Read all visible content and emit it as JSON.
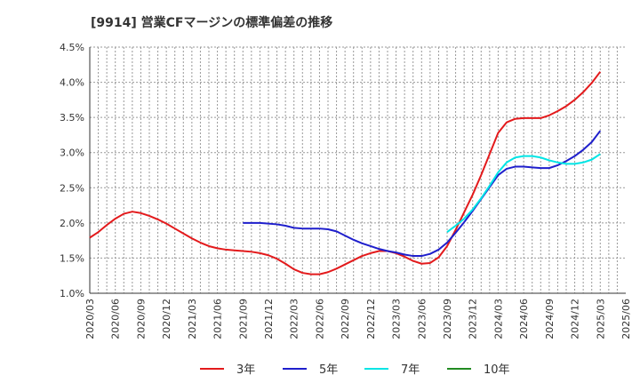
{
  "chart_data": {
    "type": "line",
    "title": "[9914]  営業CFマージンの標準偏差の推移",
    "xlabel": "",
    "ylabel": "",
    "ylim": [
      0.01,
      0.045
    ],
    "y_ticks": [
      0.01,
      0.015,
      0.02,
      0.025,
      0.03,
      0.035,
      0.04,
      0.045
    ],
    "y_tick_labels": [
      "1.0%",
      "1.5%",
      "2.0%",
      "2.5%",
      "3.0%",
      "3.5%",
      "4.0%",
      "4.5%"
    ],
    "x_tick_labels": [
      "2020/03",
      "2020/06",
      "2020/09",
      "2020/12",
      "2021/03",
      "2021/06",
      "2021/09",
      "2021/12",
      "2022/03",
      "2022/06",
      "2022/09",
      "2022/12",
      "2023/03",
      "2023/06",
      "2023/09",
      "2023/12",
      "2024/03",
      "2024/06",
      "2024/09",
      "2024/12",
      "2025/03",
      "2025/06"
    ],
    "grid": true,
    "legend_position": "bottom",
    "series": [
      {
        "name": "3年",
        "color": "#e31a1c",
        "x": [
          "2020/03",
          "2020/04",
          "2020/05",
          "2020/06",
          "2020/07",
          "2020/08",
          "2020/09",
          "2020/10",
          "2020/11",
          "2020/12",
          "2021/01",
          "2021/02",
          "2021/03",
          "2021/04",
          "2021/05",
          "2021/06",
          "2021/07",
          "2021/08",
          "2021/09",
          "2021/10",
          "2021/11",
          "2021/12",
          "2022/01",
          "2022/02",
          "2022/03",
          "2022/04",
          "2022/05",
          "2022/06",
          "2022/07",
          "2022/08",
          "2022/09",
          "2022/10",
          "2022/11",
          "2022/12",
          "2023/01",
          "2023/02",
          "2023/03",
          "2023/04",
          "2023/05",
          "2023/06",
          "2023/07",
          "2023/08",
          "2023/09",
          "2023/10",
          "2023/11",
          "2023/12",
          "2024/01",
          "2024/02",
          "2024/03",
          "2024/04",
          "2024/05",
          "2024/06",
          "2024/07",
          "2024/08",
          "2024/09",
          "2024/10",
          "2024/11",
          "2024/12",
          "2025/01",
          "2025/02",
          "2025/03"
        ],
        "values": [
          0.0179,
          0.0187,
          0.0197,
          0.0206,
          0.0213,
          0.0216,
          0.0214,
          0.021,
          0.0205,
          0.0199,
          0.0192,
          0.0185,
          0.0178,
          0.0172,
          0.0167,
          0.0164,
          0.0162,
          0.0161,
          0.016,
          0.0159,
          0.0157,
          0.0154,
          0.0149,
          0.0142,
          0.0134,
          0.0129,
          0.0127,
          0.0127,
          0.013,
          0.0135,
          0.0141,
          0.0147,
          0.0153,
          0.0157,
          0.016,
          0.016,
          0.0157,
          0.0152,
          0.0146,
          0.0142,
          0.0143,
          0.0151,
          0.0167,
          0.019,
          0.0215,
          0.024,
          0.0268,
          0.0298,
          0.0328,
          0.0343,
          0.0348,
          0.0349,
          0.0349,
          0.0349,
          0.0353,
          0.0359,
          0.0366,
          0.0375,
          0.0386,
          0.0399,
          0.0415
        ]
      },
      {
        "name": "5年",
        "color": "#1f1fcc",
        "x": [
          "2021/09",
          "2021/10",
          "2021/11",
          "2021/12",
          "2022/01",
          "2022/02",
          "2022/03",
          "2022/04",
          "2022/05",
          "2022/06",
          "2022/07",
          "2022/08",
          "2022/09",
          "2022/10",
          "2022/11",
          "2022/12",
          "2023/01",
          "2023/02",
          "2023/03",
          "2023/04",
          "2023/05",
          "2023/06",
          "2023/07",
          "2023/08",
          "2023/09",
          "2023/10",
          "2023/11",
          "2023/12",
          "2024/01",
          "2024/02",
          "2024/03",
          "2024/04",
          "2024/05",
          "2024/06",
          "2024/07",
          "2024/08",
          "2024/09",
          "2024/10",
          "2024/11",
          "2024/12",
          "2025/01",
          "2025/02",
          "2025/03"
        ],
        "values": [
          0.02,
          0.02,
          0.02,
          0.0199,
          0.0198,
          0.0196,
          0.0193,
          0.0192,
          0.0192,
          0.0192,
          0.0191,
          0.0188,
          0.0182,
          0.0176,
          0.0171,
          0.0167,
          0.0163,
          0.016,
          0.0158,
          0.0155,
          0.0153,
          0.0153,
          0.0156,
          0.0162,
          0.0172,
          0.0186,
          0.0201,
          0.0217,
          0.0234,
          0.0251,
          0.0268,
          0.0277,
          0.028,
          0.028,
          0.0279,
          0.0278,
          0.0278,
          0.0282,
          0.0288,
          0.0295,
          0.0304,
          0.0315,
          0.0331
        ]
      },
      {
        "name": "7年",
        "color": "#00e5e5",
        "x": [
          "2023/09",
          "2023/10",
          "2023/11",
          "2023/12",
          "2024/01",
          "2024/02",
          "2024/03",
          "2024/04",
          "2024/05",
          "2024/06",
          "2024/07",
          "2024/08",
          "2024/09",
          "2024/10",
          "2024/11",
          "2024/12",
          "2025/01",
          "2025/02",
          "2025/03"
        ],
        "values": [
          0.0187,
          0.0196,
          0.0206,
          0.0219,
          0.0235,
          0.0253,
          0.0272,
          0.0286,
          0.0293,
          0.0295,
          0.0295,
          0.0293,
          0.0289,
          0.0286,
          0.0284,
          0.0284,
          0.0286,
          0.029,
          0.0298
        ]
      },
      {
        "name": "10年",
        "color": "#228b22",
        "x": [],
        "values": []
      }
    ]
  }
}
